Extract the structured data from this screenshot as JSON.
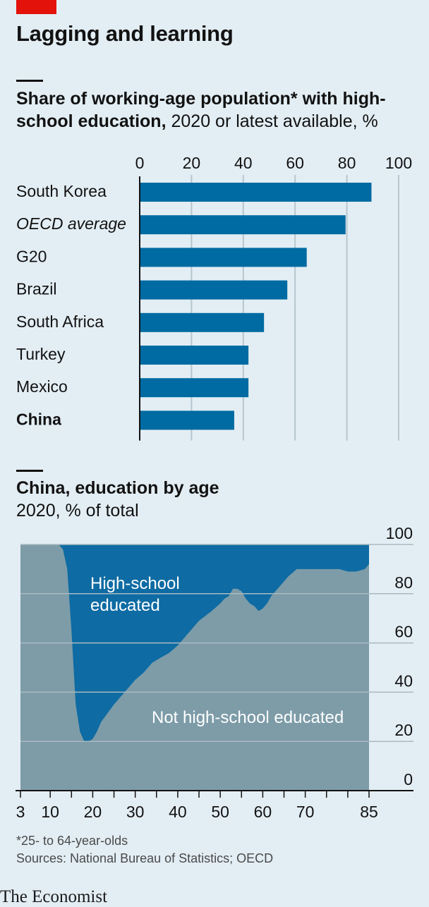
{
  "header": {
    "title": "Lagging and learning",
    "accent_color": "#e3120b"
  },
  "bar_chart": {
    "subtitle_bold": "Share of working-age population* with high-school education,",
    "subtitle_rest": " 2020 or latest available, %"
  },
  "area_chart": {
    "subtitle_bold": "China, education by age",
    "subtitle_rest": "2020, % of total"
  },
  "footer": {
    "footnote": "*25- to 64-year-olds",
    "sources": "Sources: National Bureau of Statistics; OECD",
    "brand": "The Economist"
  },
  "chart_data": [
    {
      "type": "bar",
      "orientation": "horizontal",
      "title": "Share of working-age population* with high-school education, 2020 or latest available, %",
      "categories": [
        "South Korea",
        "OECD average",
        "G20",
        "Brazil",
        "South Africa",
        "Turkey",
        "Mexico",
        "China"
      ],
      "category_styles": [
        "normal",
        "italic",
        "normal",
        "normal",
        "normal",
        "normal",
        "normal",
        "bold"
      ],
      "values": [
        89.5,
        79.5,
        64.5,
        57,
        48,
        42,
        42,
        36.5
      ],
      "xlim": [
        0,
        100
      ],
      "xticks": [
        "0",
        "20",
        "40",
        "60",
        "80",
        "100"
      ],
      "grid": true,
      "bar_color": "#006ba2",
      "grid_color": "#b7c6cf"
    },
    {
      "type": "area",
      "title": "China, education by age",
      "subtitle": "2020, % of total",
      "x": [
        3,
        12,
        13,
        14,
        15,
        16,
        17,
        18,
        19,
        20,
        21,
        22,
        25,
        28,
        30,
        32,
        34,
        36,
        38,
        40,
        42,
        45,
        48,
        50,
        51,
        52,
        53,
        54,
        55,
        56,
        57,
        58,
        59,
        60,
        61,
        62,
        64,
        66,
        68,
        70,
        72,
        75,
        78,
        80,
        82,
        84,
        85
      ],
      "not_high_school": [
        100,
        100,
        98,
        90,
        65,
        35,
        24,
        20,
        20,
        21,
        24,
        28,
        35,
        41,
        45,
        48,
        52,
        54,
        56,
        59,
        63,
        69,
        73,
        76,
        78,
        79,
        82,
        82,
        81,
        78,
        76,
        75,
        73,
        74,
        76,
        79,
        83,
        87,
        90,
        90,
        90,
        90,
        90,
        89,
        89,
        90,
        92
      ],
      "high_school": [
        0,
        0,
        2,
        10,
        35,
        65,
        76,
        80,
        80,
        79,
        76,
        72,
        65,
        59,
        55,
        52,
        48,
        46,
        44,
        41,
        37,
        31,
        27,
        24,
        22,
        21,
        18,
        18,
        19,
        22,
        24,
        25,
        27,
        26,
        24,
        21,
        17,
        13,
        10,
        10,
        10,
        10,
        10,
        11,
        11,
        10,
        8
      ],
      "series": [
        {
          "name": "Not high-school educated",
          "color": "#7d9ca8"
        },
        {
          "name": "High-school educated",
          "color": "#0e6ba3"
        }
      ],
      "xlim": [
        3,
        85
      ],
      "ylim": [
        0,
        100
      ],
      "xticks": [
        3,
        10,
        20,
        30,
        40,
        50,
        60,
        70,
        85
      ],
      "minor_xticks": [
        15,
        25,
        35,
        45,
        55,
        65,
        75,
        80
      ],
      "yticks": [
        0,
        20,
        40,
        60,
        80,
        100
      ],
      "y_axis_position": "right"
    }
  ]
}
